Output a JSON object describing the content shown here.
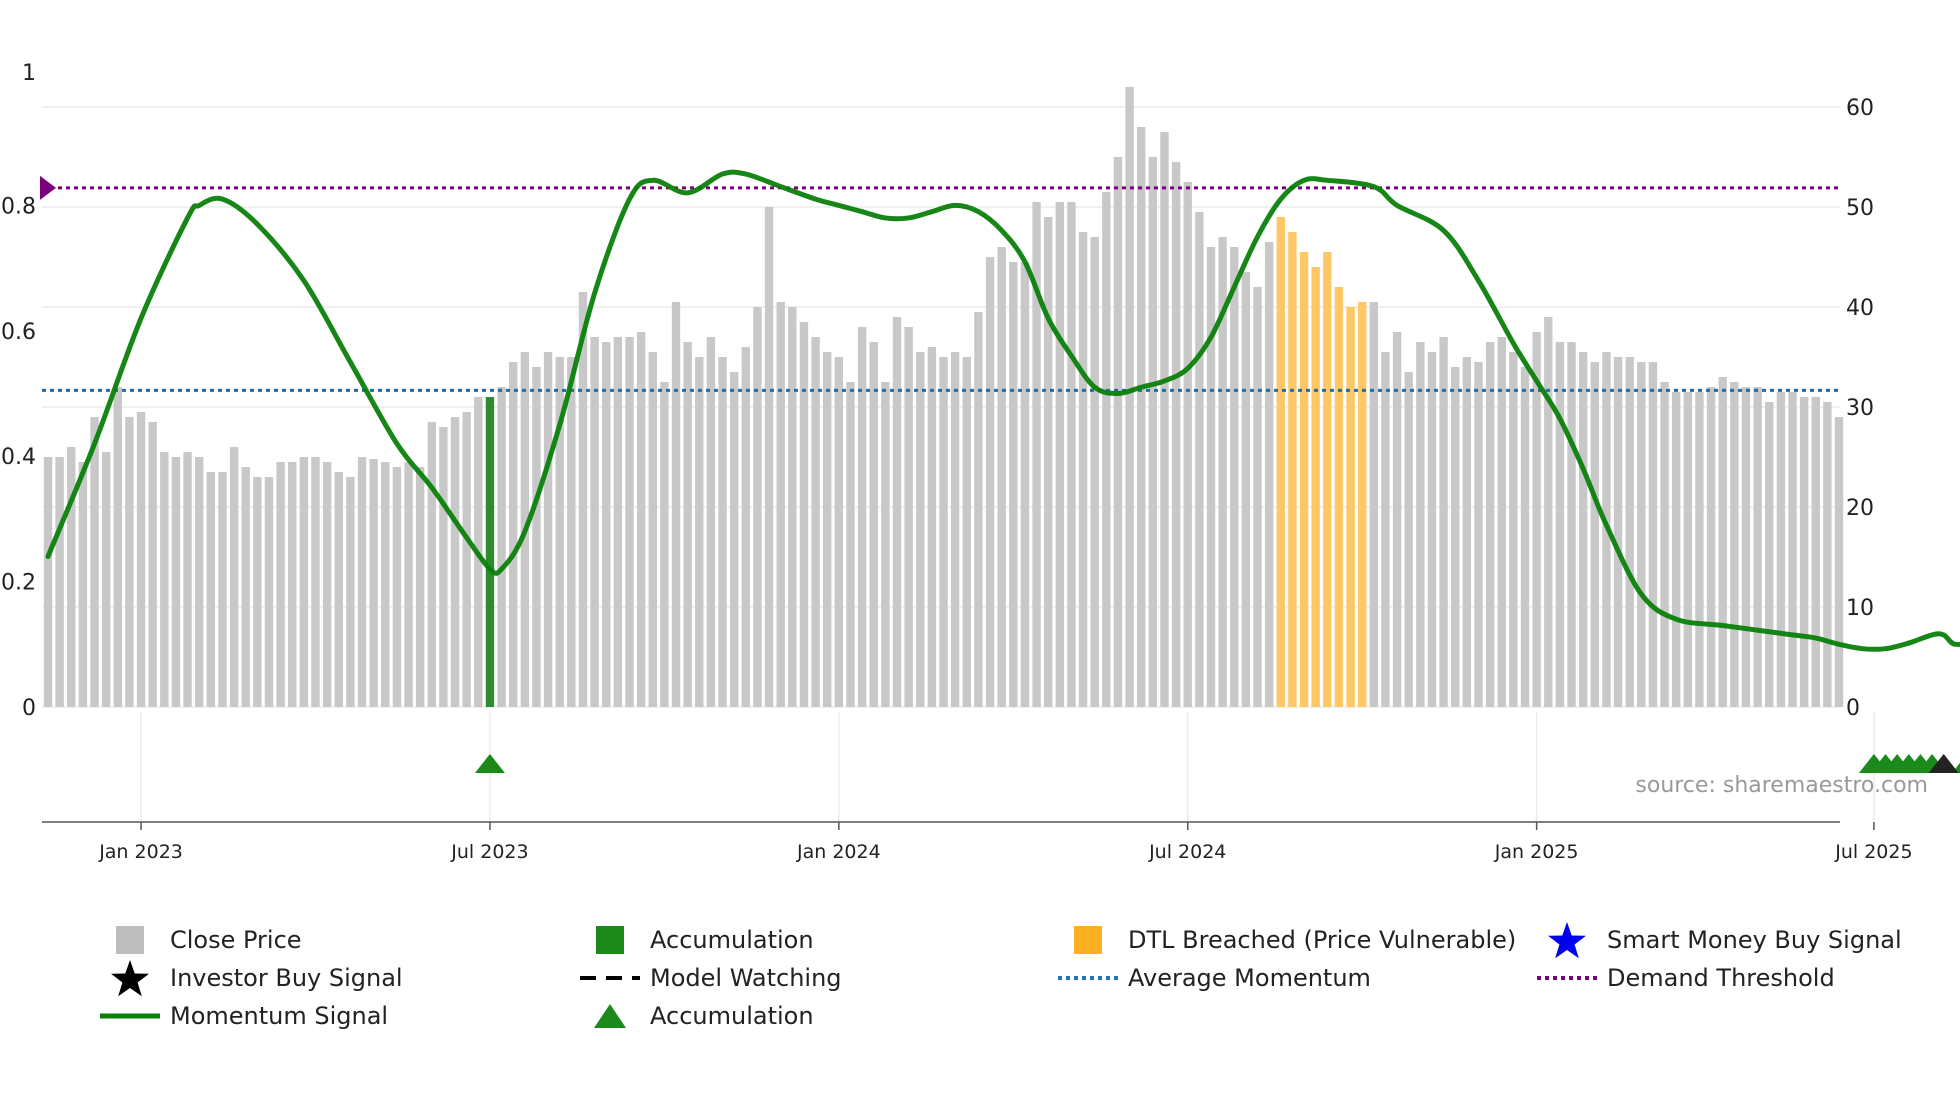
{
  "chart_data": {
    "type": "bar+line",
    "source_label": "source: sharemaestro.com",
    "x_labels": [
      "Jan 2023",
      "Jul 2023",
      "Jan 2024",
      "Jul 2024",
      "Jan 2025",
      "Jul 2025"
    ],
    "x_label_index": [
      8,
      38,
      68,
      98,
      128,
      157
    ],
    "y_left": {
      "ticks": [
        0,
        0.2,
        0.4,
        0.6,
        0.8,
        1
      ],
      "tick_labels": [
        "0",
        "0.2",
        "0.4",
        "0.6",
        "0.8",
        "1"
      ],
      "range": [
        0,
        1
      ]
    },
    "y_right": {
      "ticks": [
        0,
        10,
        20,
        30,
        40,
        50,
        60
      ],
      "tick_labels": [
        "0",
        "10",
        "20",
        "30",
        "40",
        "50",
        "60"
      ],
      "range": [
        0,
        60
      ]
    },
    "close_price": [
      25,
      25,
      26,
      24.5,
      29,
      25.5,
      32,
      29,
      29.5,
      28.5,
      25.5,
      25,
      25.5,
      25,
      23.5,
      23.5,
      26,
      24,
      23,
      23,
      24.5,
      24.5,
      25,
      25,
      24.5,
      23.5,
      23,
      25,
      24.8,
      24.5,
      24,
      24.5,
      24,
      28.5,
      28,
      29,
      29.5,
      31,
      31,
      32,
      34.5,
      35.5,
      34,
      35.5,
      35,
      35,
      41.5,
      37,
      36.5,
      37,
      37,
      37.5,
      35.5,
      32.5,
      40.5,
      36.5,
      35,
      37,
      35,
      33.5,
      36,
      40,
      50,
      40.5,
      40,
      38.5,
      37,
      35.5,
      35,
      32.5,
      38,
      36.5,
      32.5,
      39,
      38,
      35.5,
      36,
      35,
      35.5,
      35,
      39.5,
      45,
      46,
      44.5,
      44.5,
      50.5,
      49,
      50.5,
      50.5,
      47.5,
      47,
      51.5,
      55,
      62,
      58,
      55,
      57.5,
      54.5,
      52.5,
      49.5,
      46,
      47,
      46,
      43.5,
      42,
      46.5,
      49,
      47.5,
      45.5,
      44,
      45.5,
      42,
      40,
      40.5,
      40.5,
      35.5,
      37.5,
      33.5,
      36.5,
      35.5,
      37,
      34,
      35,
      34.5,
      36.5,
      37,
      35.5,
      34,
      37.5,
      39,
      36.5,
      36.5,
      35.5,
      34.5,
      35.5,
      35,
      35,
      34.5,
      34.5,
      32.5,
      31.5,
      31.5,
      31.5,
      32,
      33,
      32.5,
      32,
      32,
      30.5,
      31.5,
      31.5,
      31,
      31,
      30.5,
      29
    ],
    "accumulation_bar_indices": [
      38,
      157,
      158,
      159,
      160,
      161,
      162,
      165,
      166,
      167,
      168,
      169,
      171,
      172,
      173,
      174,
      175
    ],
    "dtl_breached_indices": [
      106,
      107,
      108,
      109,
      110,
      111,
      112,
      113
    ],
    "accumulation_marker_indices": [
      38,
      157,
      158,
      159,
      160,
      161,
      162,
      165,
      166,
      167,
      168,
      169,
      171,
      172,
      173,
      174,
      175
    ],
    "investor_buy_signal_indices": [
      163
    ],
    "momentum_signal": [
      [
        0,
        0.24
      ],
      [
        4,
        0.42
      ],
      [
        8,
        0.62
      ],
      [
        12,
        0.78
      ],
      [
        13,
        0.8
      ],
      [
        15,
        0.81
      ],
      [
        18,
        0.77
      ],
      [
        22,
        0.68
      ],
      [
        26,
        0.55
      ],
      [
        30,
        0.42
      ],
      [
        33,
        0.35
      ],
      [
        36,
        0.27
      ],
      [
        38,
        0.22
      ],
      [
        39,
        0.22
      ],
      [
        41,
        0.28
      ],
      [
        44,
        0.45
      ],
      [
        47,
        0.66
      ],
      [
        50,
        0.81
      ],
      [
        52,
        0.84
      ],
      [
        55,
        0.82
      ],
      [
        58,
        0.85
      ],
      [
        60,
        0.85
      ],
      [
        63,
        0.83
      ],
      [
        66,
        0.81
      ],
      [
        68,
        0.8
      ],
      [
        70,
        0.79
      ],
      [
        72,
        0.78
      ],
      [
        74,
        0.78
      ],
      [
        76,
        0.79
      ],
      [
        78,
        0.8
      ],
      [
        80,
        0.79
      ],
      [
        82,
        0.76
      ],
      [
        84,
        0.71
      ],
      [
        86,
        0.62
      ],
      [
        88,
        0.56
      ],
      [
        90,
        0.51
      ],
      [
        92,
        0.5
      ],
      [
        94,
        0.51
      ],
      [
        96,
        0.52
      ],
      [
        98,
        0.54
      ],
      [
        100,
        0.59
      ],
      [
        102,
        0.67
      ],
      [
        104,
        0.75
      ],
      [
        106,
        0.81
      ],
      [
        108,
        0.84
      ],
      [
        110,
        0.84
      ],
      [
        114,
        0.83
      ],
      [
        116,
        0.8
      ],
      [
        120,
        0.76
      ],
      [
        123,
        0.68
      ],
      [
        126,
        0.58
      ],
      [
        128,
        0.52
      ],
      [
        130,
        0.46
      ],
      [
        132,
        0.38
      ],
      [
        134,
        0.29
      ],
      [
        137,
        0.18
      ],
      [
        140,
        0.14
      ],
      [
        144,
        0.13
      ],
      [
        148,
        0.12
      ],
      [
        150,
        0.115
      ],
      [
        152,
        0.11
      ],
      [
        154,
        0.1
      ],
      [
        156,
        0.093
      ],
      [
        158,
        0.093
      ],
      [
        160,
        0.102
      ],
      [
        162,
        0.115
      ],
      [
        163,
        0.115
      ],
      [
        164,
        0.1
      ],
      [
        166,
        0.108
      ],
      [
        168,
        0.138
      ],
      [
        170,
        0.118
      ],
      [
        171,
        0.112
      ],
      [
        172,
        0.095
      ],
      [
        174,
        0.098
      ],
      [
        176,
        0.125
      ],
      [
        178,
        0.128
      ]
    ],
    "average_momentum": 0.505,
    "demand_threshold": 0.828,
    "legend": [
      {
        "label": "Close Price",
        "color": "#bdbdbd"
      },
      {
        "label": "Accumulation",
        "color": "#1b8a1b"
      },
      {
        "label": "DTL Breached (Price Vulnerable)",
        "color": "#ffb020"
      },
      {
        "label": "Smart Money Buy Signal",
        "color": "#0000ee"
      },
      {
        "label": "Investor Buy Signal",
        "color": "#000000"
      },
      {
        "label": "Model Watching",
        "color": "#000000"
      },
      {
        "label": "Average Momentum",
        "color": "#1f77b4"
      },
      {
        "label": "Demand Threshold",
        "color": "#7b007b"
      },
      {
        "label": "Momentum Signal",
        "color": "#0a800a"
      },
      {
        "label": "Accumulation",
        "color": "#1b8a1b"
      }
    ],
    "colors": {
      "bar": "#c8c8c8",
      "accum": "#2e8b2e",
      "dtl": "#ffc766",
      "momentum": "#0a800a",
      "avg": "#1f6fa0",
      "demand": "#7b007b",
      "grid": "#ececec"
    }
  }
}
